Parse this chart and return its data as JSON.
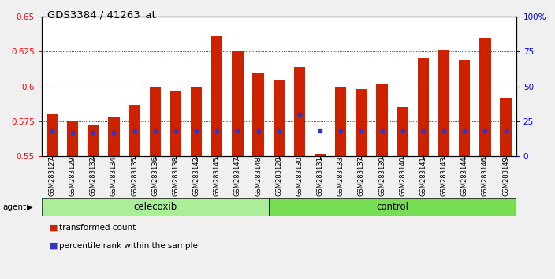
{
  "title": "GDS3384 / 41263_at",
  "samples": [
    "GSM283127",
    "GSM283129",
    "GSM283132",
    "GSM283134",
    "GSM283135",
    "GSM283136",
    "GSM283138",
    "GSM283142",
    "GSM283145",
    "GSM283147",
    "GSM283148",
    "GSM283128",
    "GSM283130",
    "GSM283131",
    "GSM283133",
    "GSM283137",
    "GSM283139",
    "GSM283140",
    "GSM283141",
    "GSM283143",
    "GSM283144",
    "GSM283146",
    "GSM283149"
  ],
  "transformed_count": [
    0.58,
    0.575,
    0.572,
    0.578,
    0.587,
    0.6,
    0.597,
    0.6,
    0.636,
    0.625,
    0.61,
    0.605,
    0.614,
    0.552,
    0.6,
    0.598,
    0.602,
    0.585,
    0.621,
    0.626,
    0.619,
    0.635,
    0.592
  ],
  "percentile_rank": [
    18,
    17,
    17,
    17,
    18,
    18,
    18,
    18,
    18,
    18,
    18,
    18,
    30,
    18,
    18,
    18,
    18,
    18,
    18,
    18,
    18,
    18,
    18
  ],
  "celecoxib_count": 11,
  "control_count": 12,
  "ylim_left": [
    0.55,
    0.65
  ],
  "ylim_right": [
    0,
    100
  ],
  "yticks_left": [
    0.55,
    0.575,
    0.6,
    0.625,
    0.65
  ],
  "yticks_right": [
    0,
    25,
    50,
    75,
    100
  ],
  "bar_color": "#cc2200",
  "percentile_color": "#3333cc",
  "plot_bg": "#ffffff",
  "celecoxib_color": "#aaee99",
  "control_color": "#77dd55",
  "agent_label": "agent",
  "celecoxib_label": "celecoxib",
  "control_label": "control",
  "legend_red": "transformed count",
  "legend_blue": "percentile rank within the sample",
  "bar_width": 0.55
}
